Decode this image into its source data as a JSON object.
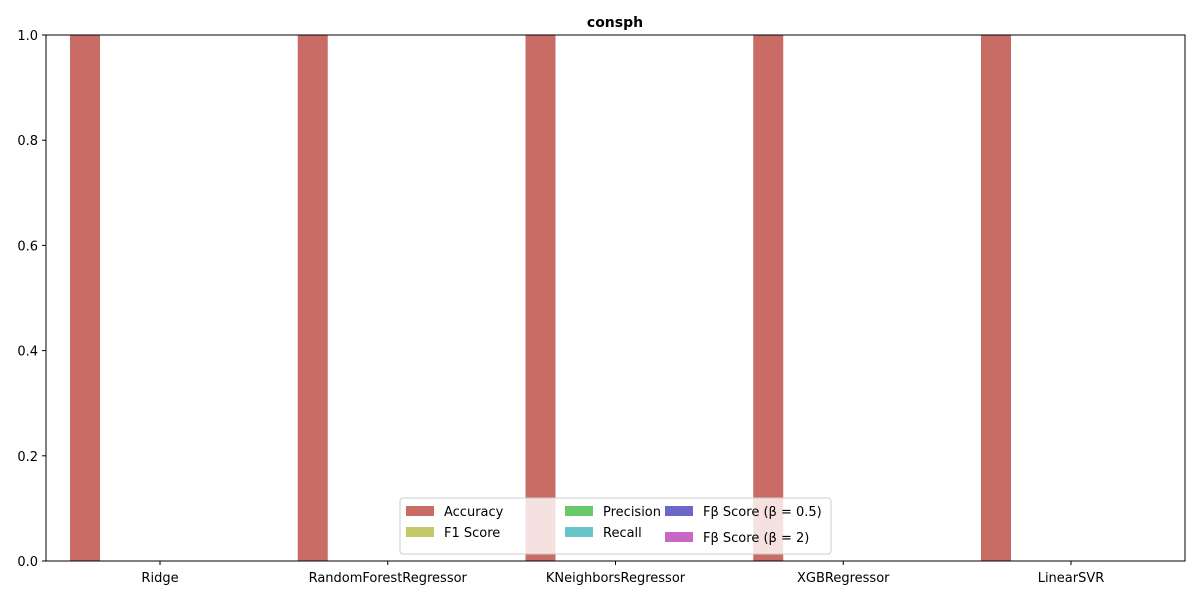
{
  "chart_data": {
    "type": "bar",
    "title": "consph",
    "xlabel": "",
    "ylabel": "",
    "ylim": [
      0,
      1
    ],
    "yticks": [
      "0.0",
      "0.2",
      "0.4",
      "0.6",
      "0.8",
      "1.0"
    ],
    "categories": [
      "Ridge",
      "RandomForestRegressor",
      "KNeighborsRegressor",
      "XGBRegressor",
      "LinearSVR"
    ],
    "series": [
      {
        "name": "Accuracy",
        "color": "#c96c66",
        "values": [
          1,
          1,
          1,
          1,
          1
        ]
      },
      {
        "name": "F1 Score",
        "color": "#c4c967",
        "values": [
          0,
          0,
          0,
          0,
          0
        ]
      },
      {
        "name": "Precision",
        "color": "#6ac967",
        "values": [
          0,
          0,
          0,
          0,
          0
        ]
      },
      {
        "name": "Recall",
        "color": "#67c4c9",
        "values": [
          0,
          0,
          0,
          0,
          0
        ]
      },
      {
        "name": "Fβ Score (β = 0.5)",
        "color": "#6a67c9",
        "values": [
          0,
          0,
          0,
          0,
          0
        ]
      },
      {
        "name": "Fβ Score (β = 2)",
        "color": "#c967c4",
        "values": [
          0,
          0,
          0,
          0,
          0
        ]
      }
    ],
    "legend_position": "bottom-center",
    "grid": false
  }
}
